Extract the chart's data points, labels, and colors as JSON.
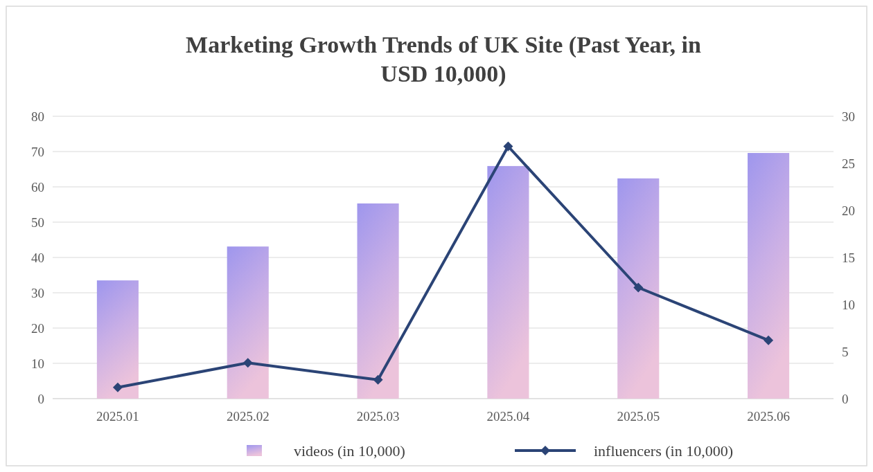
{
  "chart_data": {
    "type": "bar",
    "title": "Marketing Growth Trends of UK Site (Past Year, in USD 10,000)",
    "categories": [
      "2025.01",
      "2025.02",
      "2025.03",
      "2025.04",
      "2025.05",
      "2025.06"
    ],
    "series": [
      {
        "name": "videos (in 10,000)",
        "color": "#c8aee6",
        "values": [
          33.5,
          43.1,
          55.3,
          65.9,
          62.4,
          69.6
        ]
      },
      {
        "name": "influencers (in 10,000)",
        "type": "line",
        "axis": "y2",
        "color": "#2b4476",
        "values": [
          1.2,
          3.8,
          2.0,
          26.8,
          11.8,
          6.2
        ]
      }
    ],
    "ylim": [
      0,
      80
    ],
    "yticks": [
      0,
      10,
      20,
      30,
      40,
      50,
      60,
      70,
      80
    ],
    "y2lim": [
      0,
      30
    ],
    "y2ticks": [
      0,
      5,
      10,
      15,
      20,
      25,
      30
    ],
    "grid": "y",
    "legend": "bottom",
    "marker": "diamond",
    "line_style": "solid"
  }
}
